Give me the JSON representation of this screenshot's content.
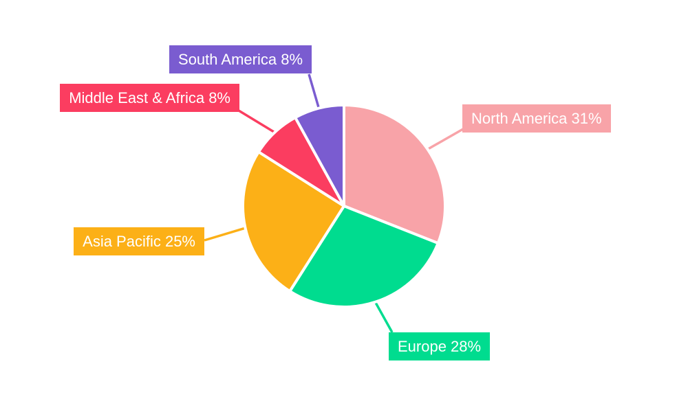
{
  "chart_data": {
    "type": "pie",
    "title": "",
    "background_color": "#FFFFFF",
    "label_text_color": "#FFFFFF",
    "start_angle": "top",
    "direction": "clockwise",
    "slices": [
      {
        "name": "North America",
        "value": 31,
        "label": "North America 31%",
        "color": "#F8A3A8"
      },
      {
        "name": "Europe",
        "value": 28,
        "label": "Europe 28%",
        "color": "#00DC8F"
      },
      {
        "name": "Asia Pacific",
        "value": 25,
        "label": "Asia Pacific 25%",
        "color": "#FCB017"
      },
      {
        "name": "Middle East & Africa",
        "value": 8,
        "label": "Middle East & Africa 8%",
        "color": "#FB3D60"
      },
      {
        "name": "South America",
        "value": 8,
        "label": "South America 8%",
        "color": "#7A5CD0"
      }
    ]
  }
}
